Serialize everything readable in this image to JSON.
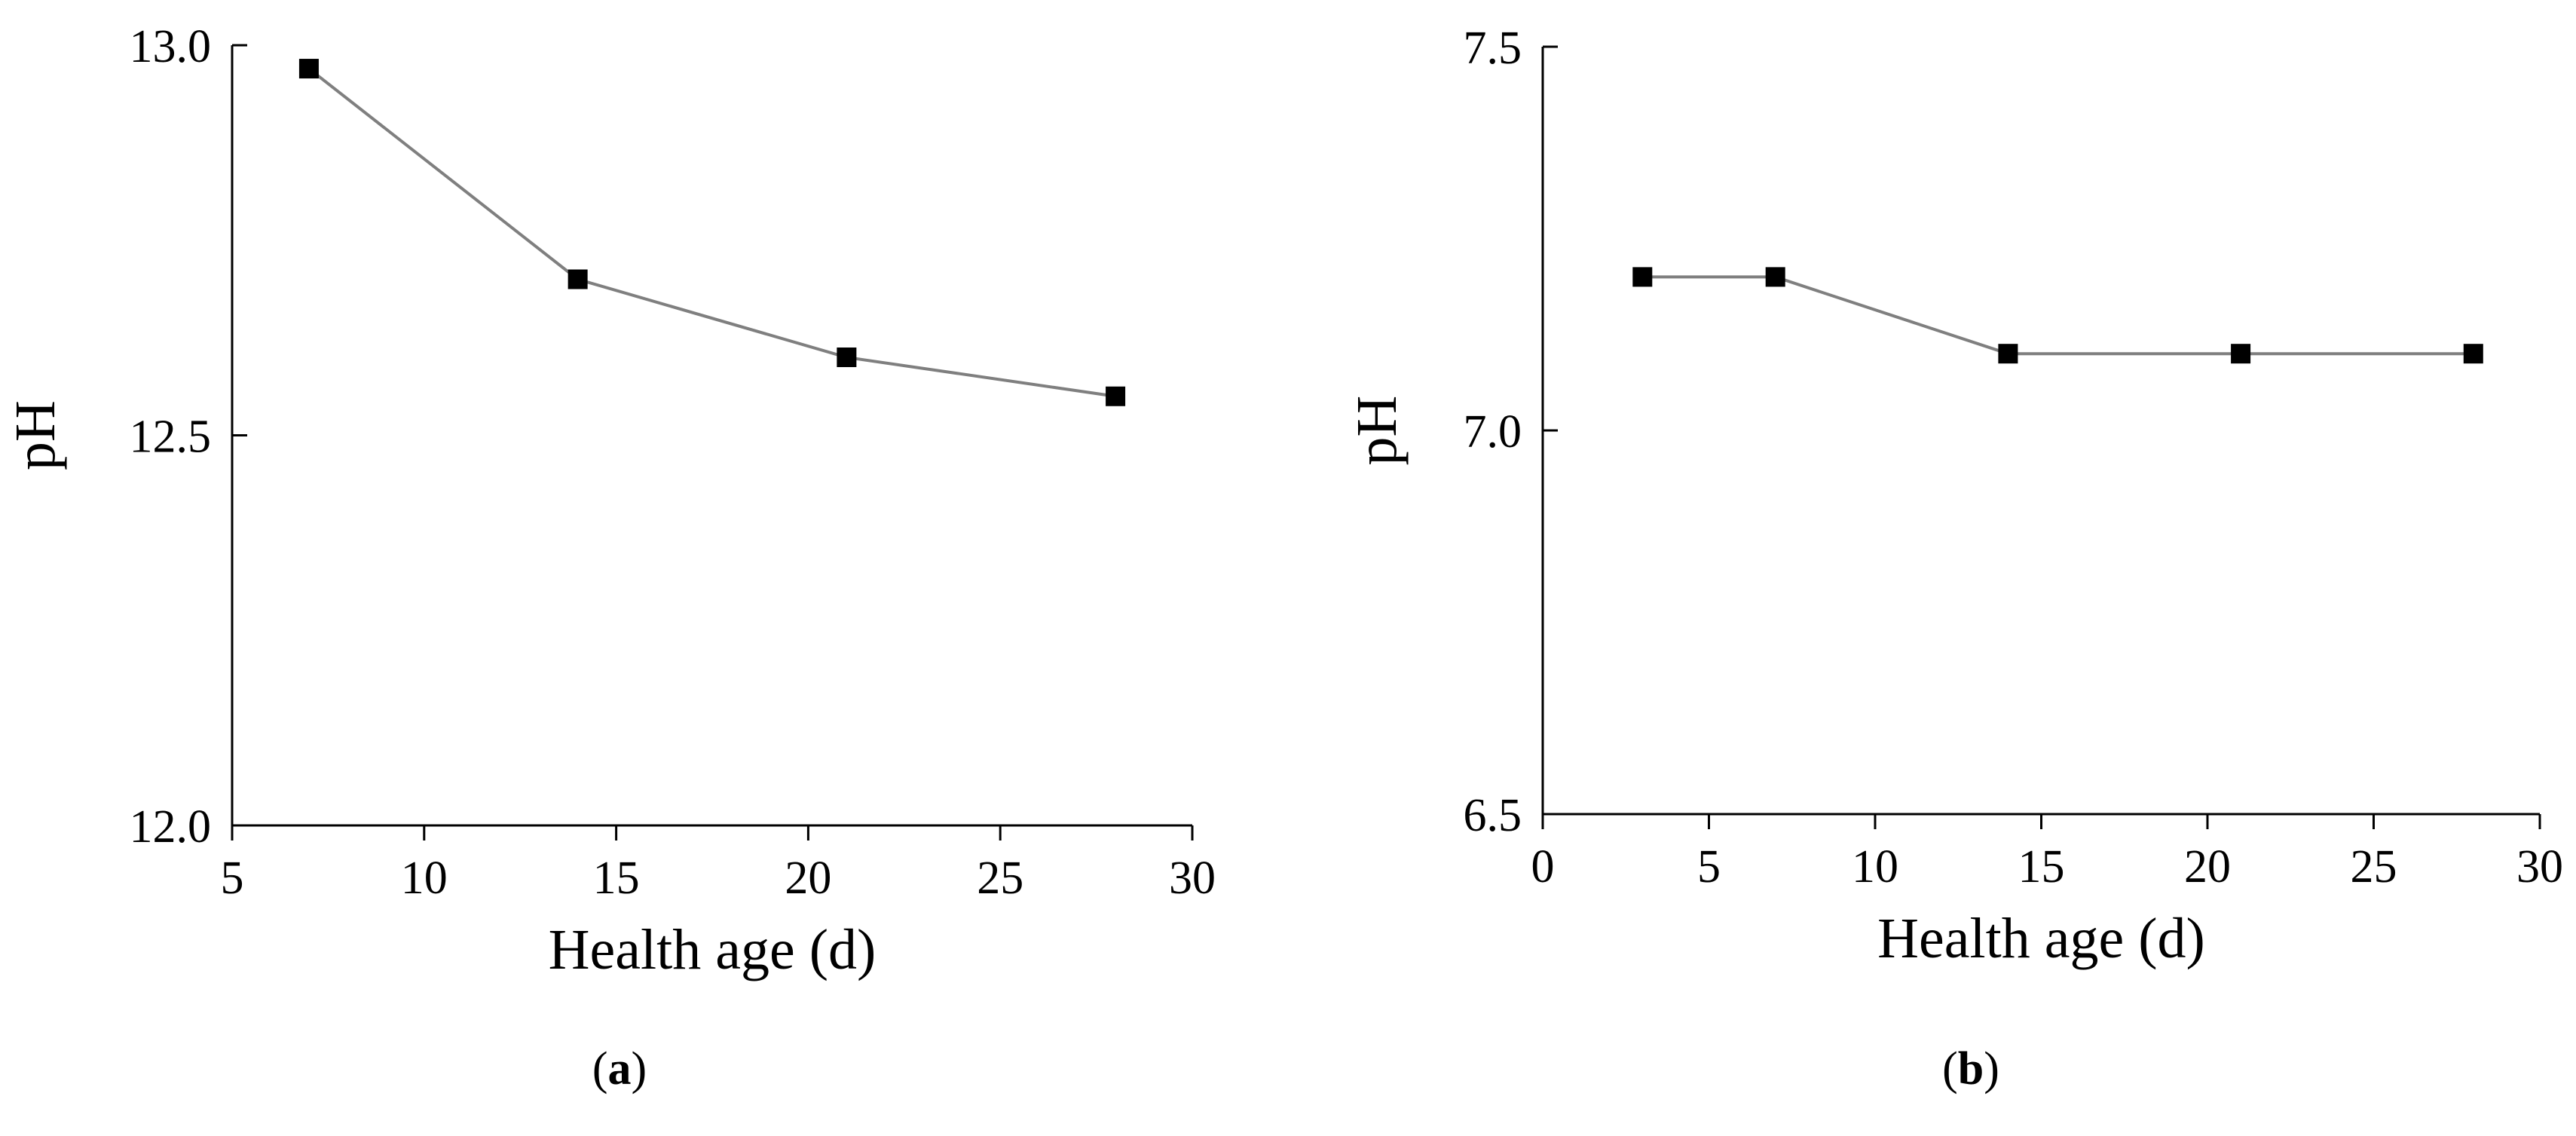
{
  "chart_data": [
    {
      "type": "line",
      "panel_label": "a",
      "xlabel": "Health age (d)",
      "ylabel": "pH",
      "xlim": [
        5,
        30
      ],
      "ylim": [
        12.0,
        13.0
      ],
      "xticks": [
        "5",
        "10",
        "15",
        "20",
        "25",
        "30"
      ],
      "yticks": [
        "12.0",
        "12.5",
        "13.0"
      ],
      "grid": false,
      "marker": "square",
      "color": "#7f7f7f",
      "series": [
        {
          "x": [
            7,
            14,
            21,
            28
          ],
          "values": [
            12.97,
            12.7,
            12.6,
            12.55
          ]
        }
      ]
    },
    {
      "type": "line",
      "panel_label": "b",
      "xlabel": "Health age (d)",
      "ylabel": "pH",
      "xlim": [
        0,
        30
      ],
      "ylim": [
        6.5,
        7.5
      ],
      "xticks": [
        "0",
        "5",
        "10",
        "15",
        "20",
        "25",
        "30"
      ],
      "yticks": [
        "6.5",
        "7.0",
        "7.5"
      ],
      "grid": false,
      "marker": "square",
      "color": "#7f7f7f",
      "series": [
        {
          "x": [
            3,
            7,
            14,
            21,
            28
          ],
          "values": [
            7.2,
            7.2,
            7.1,
            7.1,
            7.1
          ]
        }
      ]
    }
  ]
}
